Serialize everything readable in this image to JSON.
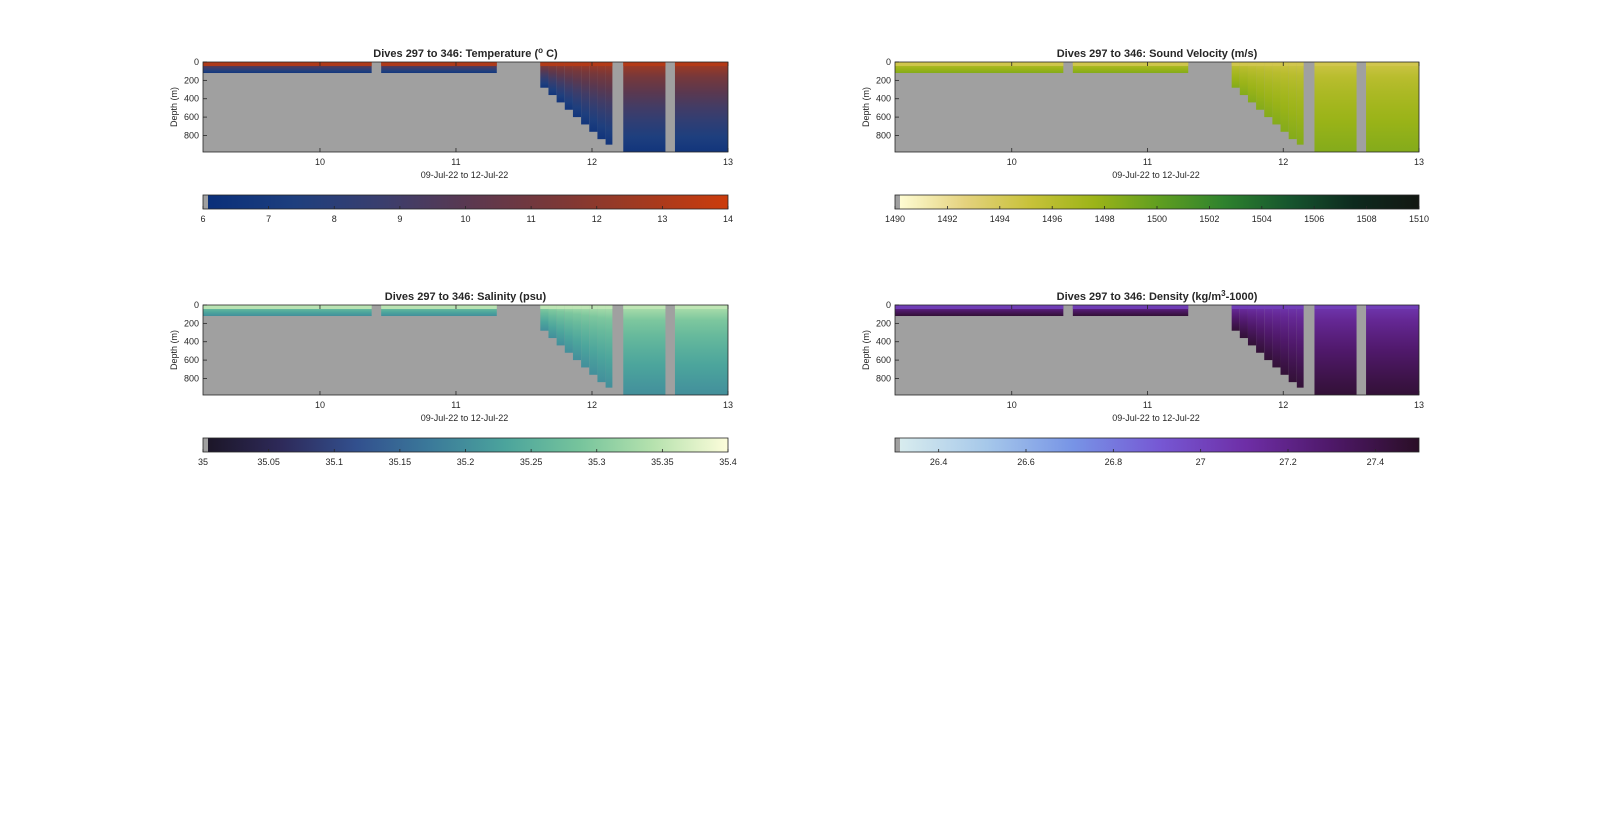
{
  "figure_background": "#ffffff",
  "land_color": "#a0a0a0",
  "chart_data": [
    {
      "type": "heatmap",
      "title": "Dives 297 to 346: Temperature (° C)",
      "title_parts": [
        "Dives 297 to 346: Temperature (",
        "o",
        " C)"
      ],
      "xlabel": "09-Jul-22 to 12-Jul-22",
      "ylabel": "Depth (m)",
      "xlim": [
        9.14,
        13.0
      ],
      "ylim": [
        0,
        980
      ],
      "y_reversed": true,
      "xticks": [
        10,
        11,
        12,
        13
      ],
      "yticks": [
        0,
        200,
        400,
        600,
        800
      ],
      "colorbar": {
        "ticks": [
          6,
          7,
          8,
          9,
          10,
          11,
          12,
          13,
          14
        ],
        "range": [
          6,
          14
        ],
        "colormap": [
          "#0a2f7a",
          "#1e3f7e",
          "#3a3e6e",
          "#5a3850",
          "#7a3838",
          "#a23a20",
          "#cc3c0c"
        ]
      },
      "shallow_value": 12.8,
      "deep_value": 6.5,
      "grade": 0.75
    },
    {
      "type": "heatmap",
      "title": "Dives 297 to 346: Sound Velocity (m/s)",
      "title_parts": [
        "Dives 297 to 346: Sound Velocity (m/s)",
        "",
        ""
      ],
      "xlabel": "09-Jul-22 to 12-Jul-22",
      "ylabel": "Depth (m)",
      "xlim": [
        9.14,
        13.0
      ],
      "ylim": [
        0,
        980
      ],
      "y_reversed": true,
      "xticks": [
        10,
        11,
        12,
        13
      ],
      "yticks": [
        0,
        200,
        400,
        600,
        800
      ],
      "colorbar": {
        "ticks": [
          1490,
          1492,
          1494,
          1496,
          1498,
          1500,
          1502,
          1504,
          1506,
          1508,
          1510
        ],
        "range": [
          1490,
          1510
        ],
        "colormap": [
          "#fefcd2",
          "#e4d27e",
          "#c8c23a",
          "#9cb418",
          "#5f9e20",
          "#2e822e",
          "#16552e",
          "#0d2a1e",
          "#131712"
        ]
      },
      "shallow_value": 1494.5,
      "deep_value": 1498.5,
      "grade": 0.6
    },
    {
      "type": "heatmap",
      "title": "Dives 297 to 346: Salinity (psu)",
      "title_parts": [
        "Dives 297 to 346: Salinity (psu)",
        "",
        ""
      ],
      "xlabel": "09-Jul-22 to 12-Jul-22",
      "ylabel": "Depth (m)",
      "xlim": [
        9.14,
        13.0
      ],
      "ylim": [
        0,
        980
      ],
      "y_reversed": true,
      "xticks": [
        10,
        11,
        12,
        13
      ],
      "yticks": [
        0,
        200,
        400,
        600,
        800
      ],
      "colorbar": {
        "ticks": [
          35,
          35.05,
          35.1,
          35.15,
          35.2,
          35.25,
          35.3,
          35.35,
          35.4
        ],
        "ticklabels": [
          "35",
          "35.05",
          "35.1",
          "35.15",
          "35.2",
          "35.25",
          "35.3",
          "35.35",
          "35.4"
        ],
        "range": [
          35,
          35.4
        ],
        "colormap": [
          "#1c1628",
          "#2e2a5a",
          "#32508e",
          "#3b7a9a",
          "#4ba49c",
          "#76c49c",
          "#b6e2ae",
          "#fdfddb"
        ]
      },
      "shallow_value": 35.34,
      "deep_value": 35.2,
      "grade": 0.6
    },
    {
      "type": "heatmap",
      "title": "Dives 297 to 346: Density (kg/m³-1000)",
      "title_parts": [
        "Dives 297 to 346: Density (kg/m",
        "3",
        "-1000)"
      ],
      "xlabel": "09-Jul-22 to 12-Jul-22",
      "ylabel": "Depth (m)",
      "xlim": [
        9.14,
        13.0
      ],
      "ylim": [
        0,
        980
      ],
      "y_reversed": true,
      "xticks": [
        10,
        11,
        12,
        13
      ],
      "yticks": [
        0,
        200,
        400,
        600,
        800
      ],
      "colorbar": {
        "ticks": [
          26.4,
          26.6,
          26.8,
          27,
          27.2,
          27.4
        ],
        "range": [
          26.3,
          27.5
        ],
        "colormap": [
          "#d8ecee",
          "#a6c8ea",
          "#7794e6",
          "#7658d4",
          "#6e2ea6",
          "#4e1868",
          "#2a0e26"
        ]
      },
      "shallow_value": 27.05,
      "deep_value": 27.45,
      "grade": 0.75
    }
  ],
  "sections": [
    {
      "from": 9.14,
      "to": 10.38,
      "max_depth": 120
    },
    {
      "from": 10.45,
      "to": 11.3,
      "max_depth": 120
    },
    {
      "from": 11.62,
      "to": 11.68,
      "max_depth": 280
    },
    {
      "from": 11.68,
      "to": 11.74,
      "max_depth": 360
    },
    {
      "from": 11.74,
      "to": 11.8,
      "max_depth": 440
    },
    {
      "from": 11.8,
      "to": 11.86,
      "max_depth": 520
    },
    {
      "from": 11.86,
      "to": 11.92,
      "max_depth": 600
    },
    {
      "from": 11.92,
      "to": 11.98,
      "max_depth": 680
    },
    {
      "from": 11.98,
      "to": 12.04,
      "max_depth": 760
    },
    {
      "from": 12.04,
      "to": 12.1,
      "max_depth": 840
    },
    {
      "from": 12.1,
      "to": 12.15,
      "max_depth": 900
    },
    {
      "from": 12.23,
      "to": 12.54,
      "max_depth": 980
    },
    {
      "from": 12.61,
      "to": 13.0,
      "max_depth": 980
    }
  ]
}
